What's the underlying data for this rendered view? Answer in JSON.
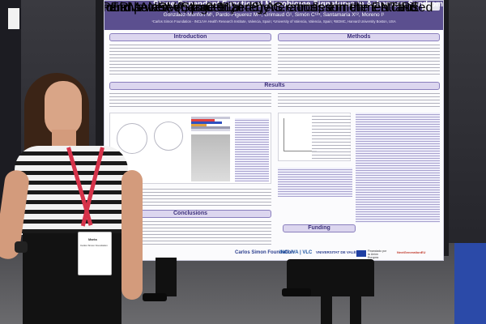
{
  "poster": {
    "title": "Stage-Dependent Functional Microbiome Signatures in Asherman Syndrome",
    "authors": "González-Monfort M¹, Pardo-Figuerez M¹², Grimaud G¹, Simón C¹²³, Santamaría X¹², Moreno I¹",
    "affiliations": "¹Carlos Simon Foundation - INCLIVA Health Research Institute, Valencia, Spain; ²University of Valencia, Valencia, Spain; ³BIDMC, Harvard University Boston, USA",
    "sections": {
      "introduction": "Introduction",
      "methods": "Methods",
      "results": "Results",
      "conclusions": "Conclusions",
      "funding": "Funding"
    },
    "intro_text": "Asherman syndrome (AS) is characterized by intrauterine adhesions and impaired endometrial regeneration, sometimes caused by infections.",
    "methods_text": "Endometrial fluid samples were obtained with aspiration (Stage II, n=6) and severe (Stage III, n=6) AS enrolled in the ENTIRE trial.",
    "results_text": "Taxonomic composition differed significantly between disease stages (PERMANOVA, p=0.01).",
    "conclusions_text": "The microbiome in AS is stage-dependent at both taxonomic and functional levels, characterized by C. acnes enrichment and increased expression of inflammatory functional genes.",
    "logos": [
      "Carlos Simon Foundation",
      "INCLIVA | VLC",
      "VNIVERSITAT DE VALÈNCIA",
      "Financiado por la Unión Europea",
      "NextGenerationEU"
    ]
  },
  "badge": {
    "name": "Marta",
    "line": "Carlos Simon Foundation"
  }
}
